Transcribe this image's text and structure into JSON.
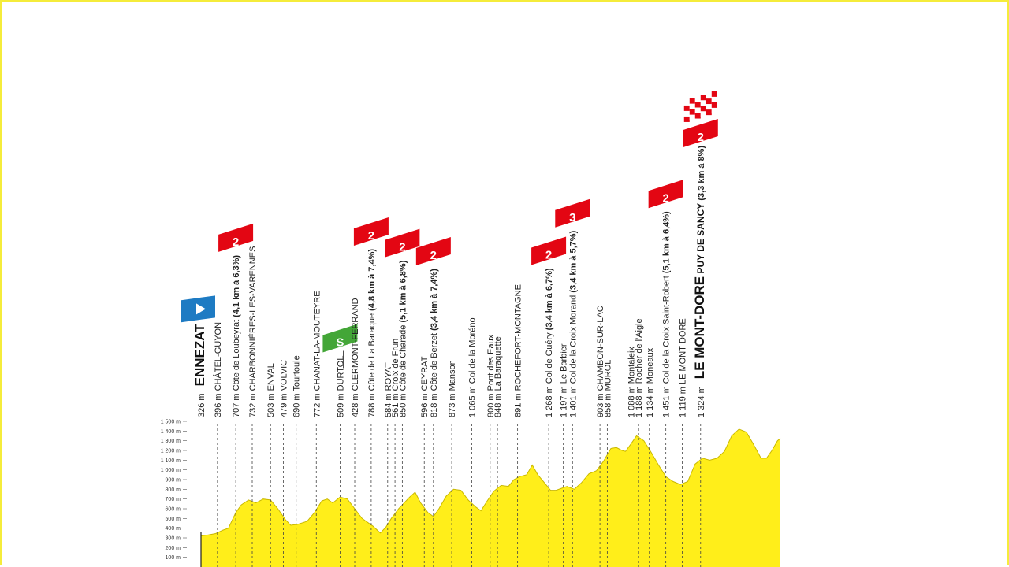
{
  "chart_data": {
    "type": "area",
    "colors": {
      "fill": "#ffee1a",
      "outline": "#333333",
      "climb_badge": "#e30613",
      "sprint_badge": "#43a637",
      "start_badge": "#1e7bc3"
    },
    "y_axis": {
      "range": [
        0,
        1500
      ],
      "unit": "m",
      "ticks": [
        "100 m",
        "200 m",
        "300 m",
        "400 m",
        "500 m",
        "600 m",
        "700 m",
        "800 m",
        "900 m",
        "1 000 m",
        "1 100 m",
        "1 200 m",
        "1 300 m",
        "1 400 m",
        "1 500 m"
      ]
    },
    "profile": [
      [
        0,
        320
      ],
      [
        2,
        330
      ],
      [
        4,
        345
      ],
      [
        6,
        380
      ],
      [
        7.5,
        400
      ],
      [
        9.5,
        560
      ],
      [
        11,
        640
      ],
      [
        13,
        690
      ],
      [
        15,
        660
      ],
      [
        17,
        700
      ],
      [
        19,
        690
      ],
      [
        21,
        600
      ],
      [
        23,
        490
      ],
      [
        24.5,
        430
      ],
      [
        26.5,
        440
      ],
      [
        29,
        470
      ],
      [
        31,
        560
      ],
      [
        33,
        680
      ],
      [
        34.5,
        700
      ],
      [
        36,
        660
      ],
      [
        38,
        720
      ],
      [
        40,
        700
      ],
      [
        42,
        600
      ],
      [
        44,
        500
      ],
      [
        47,
        420
      ],
      [
        49,
        350
      ],
      [
        50.5,
        410
      ],
      [
        52,
        500
      ],
      [
        54,
        600
      ],
      [
        57,
        720
      ],
      [
        58.5,
        770
      ],
      [
        60,
        660
      ],
      [
        62,
        560
      ],
      [
        63.5,
        520
      ],
      [
        65,
        600
      ],
      [
        67,
        730
      ],
      [
        69,
        800
      ],
      [
        71,
        790
      ],
      [
        73,
        690
      ],
      [
        75,
        620
      ],
      [
        76.5,
        580
      ],
      [
        78,
        670
      ],
      [
        80,
        780
      ],
      [
        82,
        840
      ],
      [
        84,
        830
      ],
      [
        85.5,
        900
      ],
      [
        87,
        930
      ],
      [
        89,
        950
      ],
      [
        90.5,
        1050
      ],
      [
        92,
        950
      ],
      [
        94,
        860
      ],
      [
        95.5,
        790
      ],
      [
        97,
        790
      ],
      [
        98.5,
        810
      ],
      [
        100,
        830
      ],
      [
        102,
        800
      ],
      [
        104,
        870
      ],
      [
        106,
        960
      ],
      [
        108,
        990
      ],
      [
        110,
        1090
      ],
      [
        112,
        1220
      ],
      [
        113.5,
        1230
      ],
      [
        115,
        1200
      ],
      [
        116,
        1190
      ],
      [
        117.5,
        1270
      ],
      [
        119,
        1350
      ],
      [
        121,
        1300
      ],
      [
        123,
        1180
      ],
      [
        125,
        1050
      ],
      [
        127,
        930
      ],
      [
        129,
        880
      ],
      [
        131,
        850
      ],
      [
        133,
        880
      ],
      [
        135,
        1060
      ],
      [
        137,
        1120
      ],
      [
        139,
        1100
      ],
      [
        141,
        1120
      ],
      [
        143,
        1190
      ],
      [
        145,
        1350
      ],
      [
        147,
        1420
      ],
      [
        149,
        1390
      ],
      [
        151,
        1260
      ],
      [
        153,
        1120
      ],
      [
        154.5,
        1120
      ],
      [
        156,
        1200
      ],
      [
        157.5,
        1300
      ],
      [
        158.3,
        1324
      ]
    ],
    "waypoints": [
      {
        "km": 0,
        "alt": "326 m",
        "name": "ENNEZAT",
        "style": "start"
      },
      {
        "km": 4.5,
        "alt": "396 m",
        "name": "CHÂTEL-GUYON"
      },
      {
        "km": 9.5,
        "alt": "707 m",
        "name": "Côte de Loubeyrat",
        "extra": "(4,1 km à 6,3%)",
        "badge": "2"
      },
      {
        "km": 14,
        "alt": "732 m",
        "name": "CHARBONNIÈRES-LES-VARENNES"
      },
      {
        "km": 19,
        "alt": "503 m",
        "name": "ENVAL"
      },
      {
        "km": 22.5,
        "alt": "479 m",
        "name": "VOLVIC"
      },
      {
        "km": 26,
        "alt": "690 m",
        "name": "Tourtoule"
      },
      {
        "km": 31.5,
        "alt": "772 m",
        "name": "CHANAT-LA-MOUTEYRE"
      },
      {
        "km": 38,
        "alt": "509 m",
        "name": "DURTOL",
        "badge": "S"
      },
      {
        "km": 42,
        "alt": "428 m",
        "name": "CLERMONT-FERRAND"
      },
      {
        "km": 46.5,
        "alt": "788 m",
        "name": "Côte de La Baraque",
        "extra": "(4,8 km à 7,4%)",
        "badge": "2"
      },
      {
        "km": 51,
        "alt": "584 m",
        "name": "ROYAT"
      },
      {
        "km": 53,
        "alt": "561 m",
        "name": "Croix de Frun"
      },
      {
        "km": 55,
        "alt": "850 m",
        "name": "Côte de Charade",
        "extra": "(5,1 km à 6,8%)",
        "badge": "2"
      },
      {
        "km": 61,
        "alt": "596 m",
        "name": "CEYRAT"
      },
      {
        "km": 63.5,
        "alt": "818 m",
        "name": "Côte de Berzet",
        "extra": "(3,4 km à 7,4%)",
        "badge": "2"
      },
      {
        "km": 68.5,
        "alt": "873 m",
        "name": "Manson"
      },
      {
        "km": 74,
        "alt": "1 065 m",
        "name": "Col de la Moréno"
      },
      {
        "km": 79,
        "alt": "800 m",
        "name": "Pont des Eaux"
      },
      {
        "km": 81,
        "alt": "848 m",
        "name": "La Baraquette"
      },
      {
        "km": 86.5,
        "alt": "891 m",
        "name": "ROCHEFORT-MONTAGNE"
      },
      {
        "km": 95,
        "alt": "1 268 m",
        "name": "Col de Guéry",
        "extra": "(3,4 km à 6,7%)",
        "badge": "2"
      },
      {
        "km": 99,
        "alt": "1 197 m",
        "name": "Le Barbier"
      },
      {
        "km": 101.5,
        "alt": "1 401 m",
        "name": "Col de la Croix Morand",
        "extra": "(3,4 km à 5,7%)",
        "badge": "3"
      },
      {
        "km": 109,
        "alt": "903 m",
        "name": "CHAMBON-SUR-LAC"
      },
      {
        "km": 111,
        "alt": "858 m",
        "name": "MUROL"
      },
      {
        "km": 117.5,
        "alt": "1 088 m",
        "name": "Montaleix"
      },
      {
        "km": 119.5,
        "alt": "1 188 m",
        "name": "Rocher de l'Aigle"
      },
      {
        "km": 122.5,
        "alt": "1 134 m",
        "name": "Moneaux"
      },
      {
        "km": 127,
        "alt": "1 451 m",
        "name": "Col de la Croix Saint-Robert",
        "extra": "(5,1 km à 6,4%)",
        "badge": "2"
      },
      {
        "km": 131.5,
        "alt": "1 119 m",
        "name": "LE MONT-DORE"
      },
      {
        "km": 136.5,
        "alt": "1 324 m",
        "name": "LE MONT-DORE",
        "name2": "PUY DE SANCY",
        "extra": "(3,3 km à 8%)",
        "badge": "2",
        "style": "finish"
      }
    ]
  }
}
